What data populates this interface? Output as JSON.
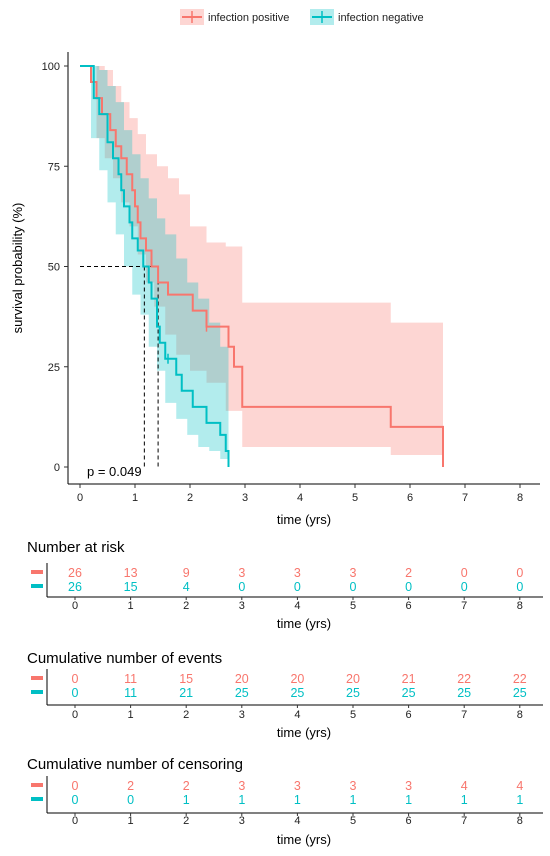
{
  "colors": {
    "positive": "#F8766D",
    "negative": "#00BFC4",
    "positive_band": "#F8766D",
    "negative_band": "#00BFC4"
  },
  "chart_data": {
    "type": "line",
    "subtype": "kaplan-meier",
    "xlabel": "time (yrs)",
    "ylabel": "survival probability (%)",
    "xlim": [
      0,
      8
    ],
    "ylim": [
      0,
      100
    ],
    "x_ticks": [
      "0",
      "1",
      "2",
      "3",
      "4",
      "5",
      "6",
      "7",
      "8"
    ],
    "y_ticks": [
      "0",
      "25",
      "50",
      "75",
      "100"
    ],
    "grid": false,
    "legend_position": "top",
    "p_value": "p = 0.049",
    "median_survival": {
      "y": 50,
      "positive_x": 1.42,
      "negative_x": 1.17
    },
    "series": [
      {
        "name": "infection positive",
        "color": "#F8766D",
        "step_points": [
          [
            0,
            100
          ],
          [
            0.1,
            100
          ],
          [
            0.2,
            96
          ],
          [
            0.3,
            92
          ],
          [
            0.4,
            88
          ],
          [
            0.55,
            84
          ],
          [
            0.65,
            80
          ],
          [
            0.75,
            77
          ],
          [
            0.85,
            73
          ],
          [
            0.95,
            69
          ],
          [
            1.0,
            65
          ],
          [
            1.05,
            61
          ],
          [
            1.1,
            57
          ],
          [
            1.2,
            54
          ],
          [
            1.3,
            50
          ],
          [
            1.42,
            46
          ],
          [
            1.6,
            43
          ],
          [
            2.05,
            39
          ],
          [
            2.3,
            35
          ],
          [
            2.7,
            30
          ],
          [
            2.8,
            25
          ],
          [
            2.95,
            15
          ],
          [
            5.65,
            10
          ],
          [
            6.6,
            10
          ],
          [
            6.6,
            0
          ]
        ],
        "ci_upper": [
          [
            0,
            100
          ],
          [
            0.3,
            100
          ],
          [
            0.45,
            99
          ],
          [
            0.6,
            95
          ],
          [
            0.75,
            91
          ],
          [
            0.9,
            87
          ],
          [
            1.05,
            83
          ],
          [
            1.2,
            78
          ],
          [
            1.4,
            75
          ],
          [
            1.6,
            72
          ],
          [
            1.8,
            68
          ],
          [
            2.0,
            60
          ],
          [
            2.3,
            56
          ],
          [
            2.65,
            55
          ],
          [
            2.95,
            41
          ],
          [
            5.65,
            36
          ],
          [
            6.6,
            36
          ]
        ],
        "ci_lower": [
          [
            0,
            100
          ],
          [
            0.3,
            82
          ],
          [
            0.45,
            77
          ],
          [
            0.6,
            72
          ],
          [
            0.75,
            66
          ],
          [
            0.9,
            60
          ],
          [
            1.05,
            53
          ],
          [
            1.2,
            46
          ],
          [
            1.35,
            40
          ],
          [
            1.55,
            33
          ],
          [
            1.75,
            28
          ],
          [
            2.0,
            24
          ],
          [
            2.3,
            21
          ],
          [
            2.65,
            14
          ],
          [
            2.95,
            5
          ],
          [
            5.65,
            3
          ],
          [
            6.6,
            1
          ]
        ],
        "censor_marks": [
          [
            2.3,
            35
          ]
        ]
      },
      {
        "name": "infection negative",
        "color": "#00BFC4",
        "step_points": [
          [
            0,
            100
          ],
          [
            0.15,
            100
          ],
          [
            0.25,
            92
          ],
          [
            0.35,
            88
          ],
          [
            0.5,
            81
          ],
          [
            0.6,
            77
          ],
          [
            0.7,
            73
          ],
          [
            0.75,
            69
          ],
          [
            0.8,
            65
          ],
          [
            0.9,
            61
          ],
          [
            0.95,
            57
          ],
          [
            1.05,
            54
          ],
          [
            1.15,
            50
          ],
          [
            1.25,
            46
          ],
          [
            1.3,
            42
          ],
          [
            1.4,
            35
          ],
          [
            1.45,
            31
          ],
          [
            1.55,
            27
          ],
          [
            1.75,
            23
          ],
          [
            1.85,
            19
          ],
          [
            2.05,
            15
          ],
          [
            2.3,
            11
          ],
          [
            2.55,
            8
          ],
          [
            2.65,
            4
          ],
          [
            2.7,
            0
          ]
        ],
        "ci_upper": [
          [
            0,
            100
          ],
          [
            0.2,
            100
          ],
          [
            0.35,
            99
          ],
          [
            0.5,
            95
          ],
          [
            0.65,
            91
          ],
          [
            0.8,
            84
          ],
          [
            0.95,
            78
          ],
          [
            1.1,
            72
          ],
          [
            1.25,
            67
          ],
          [
            1.4,
            62
          ],
          [
            1.55,
            58
          ],
          [
            1.75,
            52
          ],
          [
            1.95,
            46
          ],
          [
            2.15,
            42
          ],
          [
            2.35,
            36
          ],
          [
            2.55,
            30
          ],
          [
            2.7,
            10
          ]
        ],
        "ci_lower": [
          [
            0,
            100
          ],
          [
            0.2,
            82
          ],
          [
            0.35,
            74
          ],
          [
            0.5,
            66
          ],
          [
            0.65,
            58
          ],
          [
            0.8,
            50
          ],
          [
            0.95,
            43
          ],
          [
            1.1,
            38
          ],
          [
            1.25,
            30
          ],
          [
            1.4,
            24
          ],
          [
            1.55,
            16
          ],
          [
            1.75,
            12
          ],
          [
            1.95,
            8
          ],
          [
            2.15,
            5
          ],
          [
            2.35,
            4
          ],
          [
            2.55,
            2
          ],
          [
            2.7,
            0
          ]
        ],
        "censor_marks": [
          [
            1.6,
            27
          ]
        ]
      }
    ]
  },
  "tables": [
    {
      "title": "Number at risk",
      "xlabel": "time (yrs)",
      "rows": [
        [
          "26",
          "13",
          "9",
          "3",
          "3",
          "3",
          "2",
          "0",
          "0"
        ],
        [
          "26",
          "15",
          "4",
          "0",
          "0",
          "0",
          "0",
          "0",
          "0"
        ]
      ]
    },
    {
      "title": "Cumulative number of events",
      "xlabel": "time (yrs)",
      "rows": [
        [
          "0",
          "11",
          "15",
          "20",
          "20",
          "20",
          "21",
          "22",
          "22"
        ],
        [
          "0",
          "11",
          "21",
          "25",
          "25",
          "25",
          "25",
          "25",
          "25"
        ]
      ]
    },
    {
      "title": "Cumulative number of censoring",
      "xlabel": "time (yrs)",
      "rows": [
        [
          "0",
          "2",
          "2",
          "3",
          "3",
          "3",
          "3",
          "4",
          "4"
        ],
        [
          "0",
          "0",
          "1",
          "1",
          "1",
          "1",
          "1",
          "1",
          "1"
        ]
      ]
    }
  ]
}
